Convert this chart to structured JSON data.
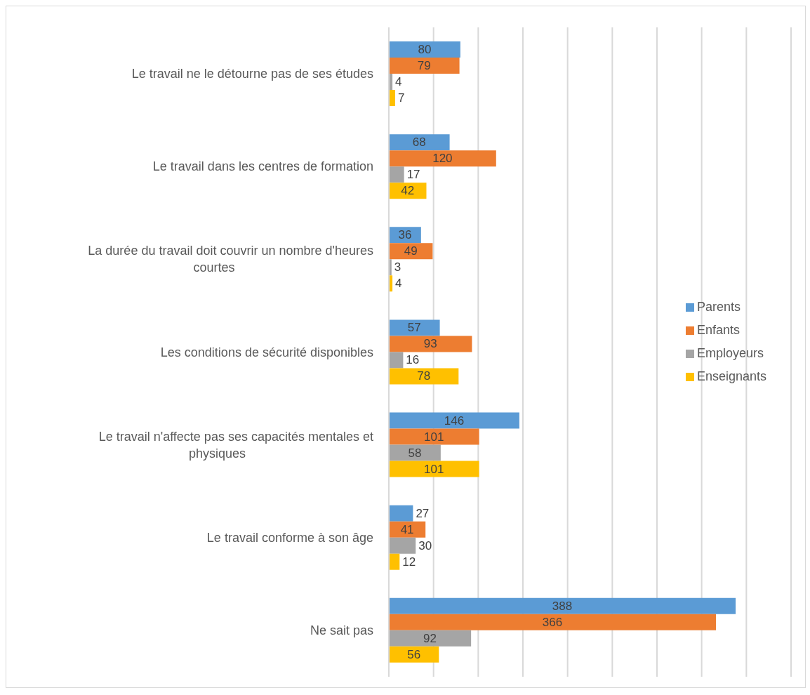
{
  "chart_data": {
    "type": "bar",
    "orientation": "horizontal",
    "categories": [
      "Le travail ne le détourne pas de ses études",
      "Le travail dans les centres de formation",
      "La durée du travail doit couvrir un nombre d'heures courtes",
      "Les conditions de sécurité disponibles",
      "Le travail n'affecte pas ses capacités mentales et physiques",
      "Le travail conforme à son âge",
      "Ne sait pas"
    ],
    "series": [
      {
        "name": "Parents",
        "color": "#5b9bd5",
        "values": [
          80,
          68,
          36,
          57,
          146,
          27,
          388
        ]
      },
      {
        "name": "Enfants",
        "color": "#ed7d31",
        "values": [
          79,
          120,
          49,
          93,
          101,
          41,
          366
        ]
      },
      {
        "name": "Employeurs",
        "color": "#a5a5a5",
        "values": [
          4,
          17,
          3,
          16,
          58,
          30,
          92
        ]
      },
      {
        "name": "Enseignants",
        "color": "#ffc000",
        "values": [
          7,
          42,
          4,
          78,
          101,
          12,
          56
        ]
      }
    ],
    "xlim": [
      0,
      450
    ],
    "xticks": [
      {
        "value": 0,
        "label": null
      },
      {
        "value": 50,
        "label": null
      },
      {
        "value": 100,
        "label": null
      },
      {
        "value": 150,
        "label": null
      },
      {
        "value": 200,
        "label": null
      },
      {
        "value": 250,
        "label": null
      },
      {
        "value": 300,
        "label": null
      },
      {
        "value": 350,
        "label": null
      },
      {
        "value": 400,
        "label": null
      },
      {
        "value": 450,
        "label": null
      }
    ],
    "tick_labels": "y",
    "grid": "x",
    "legend": "right",
    "data_labels": true
  }
}
